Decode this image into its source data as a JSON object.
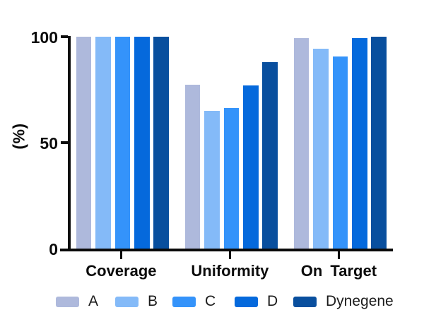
{
  "figure": {
    "background": "#ffffff",
    "axis_color": "#0b0b0b"
  },
  "chart_data": {
    "type": "bar",
    "title": "",
    "xlabel": "",
    "ylabel": "(%)",
    "ylim": [
      0,
      100
    ],
    "yticks": [
      0,
      50,
      100
    ],
    "grid": false,
    "legend_position": "bottom",
    "categories": [
      "Coverage",
      "Uniformity",
      "On Target"
    ],
    "series": [
      {
        "name": "A",
        "color": "#aeb9dc",
        "values": [
          100,
          77.5,
          99.3
        ]
      },
      {
        "name": "B",
        "color": "#84baf8",
        "values": [
          100,
          65.0,
          94.4
        ]
      },
      {
        "name": "C",
        "color": "#3493fa",
        "values": [
          100,
          66.5,
          90.8
        ]
      },
      {
        "name": "D",
        "color": "#0569dc",
        "values": [
          100,
          77.0,
          99.4
        ]
      },
      {
        "name": "Dynegene",
        "color": "#094f9e",
        "values": [
          100,
          88.0,
          100.0
        ]
      }
    ]
  }
}
